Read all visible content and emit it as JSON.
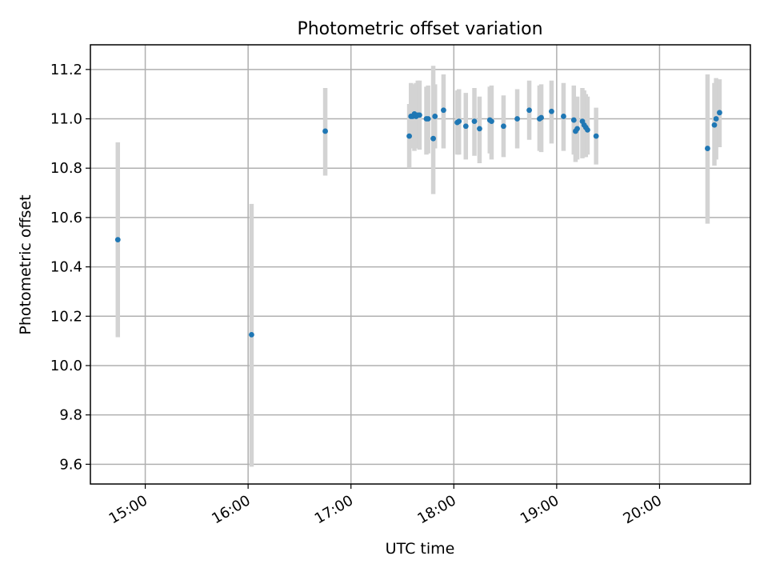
{
  "chart_data": {
    "type": "scatter",
    "title": "Photometric offset variation",
    "xlabel": "UTC time",
    "ylabel": "Photometric offset",
    "x_ticks": [
      "15:00",
      "16:00",
      "17:00",
      "18:00",
      "19:00",
      "20:00"
    ],
    "y_ticks": [
      "9.6",
      "9.8",
      "10.0",
      "10.2",
      "10.4",
      "10.6",
      "10.8",
      "11.0",
      "11.2"
    ],
    "xlim": [
      "14:28",
      "20:53"
    ],
    "ylim": [
      9.52,
      11.3
    ],
    "grid": true,
    "errorbar_color": "#d3d3d3",
    "marker_color": "#1f77b4",
    "series": [
      {
        "x": [
          "14:44",
          "16:02",
          "16:45",
          "17:34",
          "17:35",
          "17:36",
          "17:37",
          "17:38",
          "17:39",
          "17:40",
          "17:44",
          "17:45",
          "17:48",
          "17:49",
          "17:54",
          "18:02",
          "18:03",
          "18:07",
          "18:12",
          "18:15",
          "18:21",
          "18:22",
          "18:29",
          "18:37",
          "18:44",
          "18:50",
          "18:51",
          "18:57",
          "19:04",
          "19:10",
          "19:11",
          "19:12",
          "19:15",
          "19:16",
          "19:17",
          "19:18",
          "19:23",
          "20:28",
          "20:32",
          "20:33",
          "20:35"
        ],
        "y": [
          10.51,
          10.125,
          10.95,
          10.93,
          11.01,
          11.01,
          11.02,
          11.01,
          11.015,
          11.015,
          11.0,
          11.0,
          10.92,
          11.01,
          11.035,
          10.985,
          10.99,
          10.97,
          10.99,
          10.96,
          10.995,
          10.99,
          10.97,
          11.0,
          11.035,
          11.0,
          11.005,
          11.03,
          11.01,
          10.995,
          10.95,
          10.96,
          10.99,
          10.975,
          10.965,
          10.955,
          10.93,
          10.88,
          10.975,
          11.0,
          11.025
        ],
        "err_low": [
          10.115,
          9.59,
          10.77,
          10.8,
          10.88,
          10.88,
          10.87,
          10.88,
          10.88,
          10.875,
          10.855,
          10.86,
          10.695,
          10.88,
          10.88,
          10.855,
          10.855,
          10.835,
          10.85,
          10.82,
          10.86,
          10.835,
          10.845,
          10.88,
          10.915,
          10.87,
          10.865,
          10.9,
          10.87,
          10.855,
          10.825,
          10.835,
          10.84,
          10.845,
          10.845,
          10.855,
          10.815,
          10.575,
          10.81,
          10.835,
          10.885
        ],
        "err_high": [
          10.905,
          10.655,
          11.125,
          11.06,
          11.145,
          11.14,
          11.14,
          11.145,
          11.155,
          11.155,
          11.13,
          11.135,
          11.215,
          11.14,
          11.18,
          11.115,
          11.12,
          11.105,
          11.125,
          11.09,
          11.13,
          11.135,
          11.095,
          11.12,
          11.155,
          11.135,
          11.14,
          11.155,
          11.145,
          11.135,
          11.08,
          11.09,
          11.125,
          11.115,
          11.1,
          11.09,
          11.045,
          11.18,
          11.145,
          11.165,
          11.16
        ]
      }
    ]
  }
}
